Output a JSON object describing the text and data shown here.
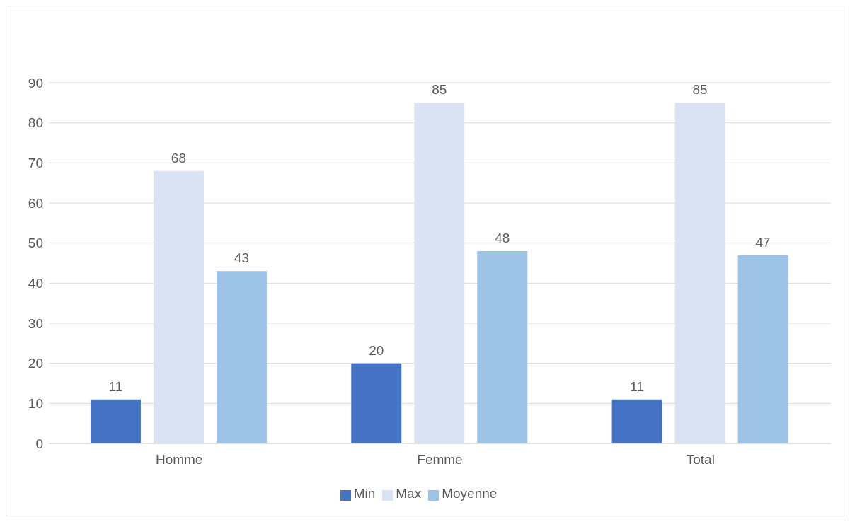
{
  "chart_data": {
    "type": "bar",
    "categories": [
      "Homme",
      "Femme",
      "Total"
    ],
    "series": [
      {
        "name": "Min",
        "color": "#4472c4",
        "values": [
          11,
          20,
          11
        ]
      },
      {
        "name": "Max",
        "color": "#dae3f3",
        "values": [
          68,
          85,
          85
        ]
      },
      {
        "name": "Moyenne",
        "color": "#9dc3e6",
        "values": [
          43,
          48,
          47
        ]
      }
    ],
    "ylim": [
      0,
      90
    ],
    "yticks": [
      0,
      10,
      20,
      30,
      40,
      50,
      60,
      70,
      80,
      90
    ],
    "grid": "y",
    "legend": "bottom",
    "data_labels": true
  }
}
